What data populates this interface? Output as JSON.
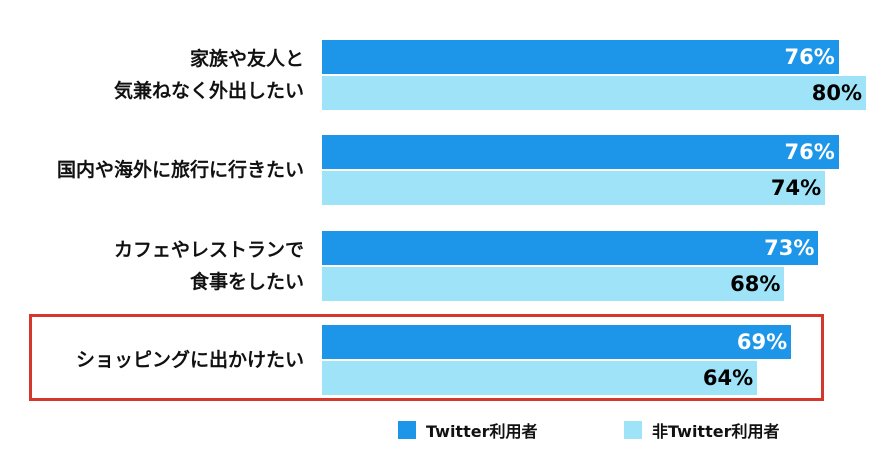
{
  "chart_data": {
    "type": "bar",
    "orientation": "horizontal",
    "categories": [
      [
        "家族や友人と",
        "気兼ねなく外出したい"
      ],
      [
        "国内や海外に旅行に行きたい"
      ],
      [
        "カフェやレストランで",
        "食事をしたい"
      ],
      [
        "ショッピングに出かけたい"
      ]
    ],
    "series": [
      {
        "name": "Twitter利用者",
        "values": [
          76,
          76,
          73,
          69
        ],
        "color": "#1d95e8",
        "label_color": "#ffffff"
      },
      {
        "name": "非Twitter利用者",
        "values": [
          80,
          74,
          68,
          64
        ],
        "color": "#9fe3f8",
        "label_color": "#000000"
      }
    ],
    "value_format": "{v}%",
    "highlighted_category_index": 3,
    "highlight_color": "#d4382c",
    "legend_placement": "bottom",
    "grid": false
  }
}
